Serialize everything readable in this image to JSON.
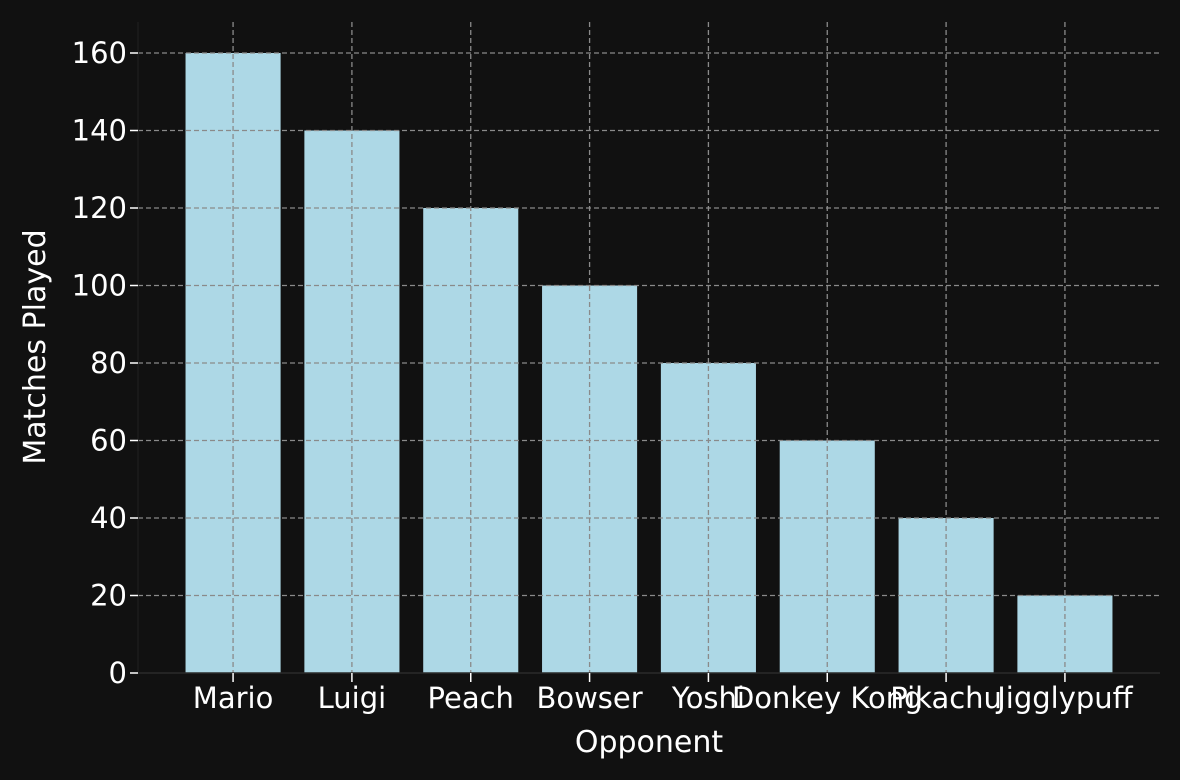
{
  "chart_data": {
    "type": "bar",
    "categories": [
      "Mario",
      "Luigi",
      "Peach",
      "Bowser",
      "Yoshi",
      "Donkey Kong",
      "Pikachu",
      "Jigglypuff"
    ],
    "values": [
      160,
      140,
      120,
      100,
      80,
      60,
      40,
      20
    ],
    "title": "",
    "xlabel": "Opponent",
    "ylabel": "Matches Played",
    "ylim": [
      0,
      168
    ],
    "yticks": [
      0,
      20,
      40,
      60,
      80,
      100,
      120,
      140,
      160
    ],
    "grid": true,
    "colors": {
      "background": "#111111",
      "bar": "#add8e6",
      "grid": "#8a8a8a",
      "text": "#ffffff"
    }
  }
}
